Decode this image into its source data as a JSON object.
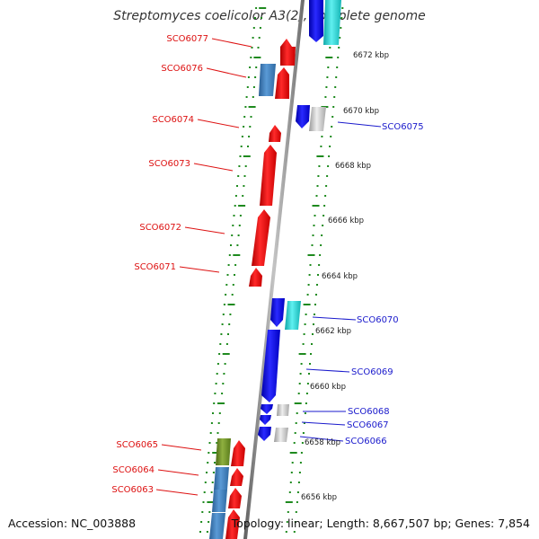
{
  "title": "Streptomyces coelicolor A3(2), complete genome",
  "footer": {
    "accession": "Accession: NC_003888",
    "topology": "Topology: linear; Length: 8,667,507 bp; Genes: 7,854"
  },
  "colors": {
    "left_label": "#dd1111",
    "right_label": "#1a1acc",
    "red_gene": "#ee1111",
    "blue_gene": "#1111ee",
    "steel_gene": "#3a7ab8",
    "cyan_gene": "#22d0d0",
    "gray_gene": "#c8c8c8",
    "olive_gene": "#6f8f2a",
    "tick": "#1e8a1e",
    "backbone": "#8a8a8a"
  },
  "scale_labels": [
    "6672 kbp",
    "6670 kbp",
    "6668 kbp",
    "6666 kbp",
    "6664 kbp",
    "6662 kbp",
    "6660 kbp",
    "6658 kbp",
    "6656 kbp"
  ],
  "left_gene_labels": [
    "SCO6077",
    "SCO6076",
    "SCO6074",
    "SCO6073",
    "SCO6072",
    "SCO6071",
    "SCO6065",
    "SCO6064",
    "SCO6063"
  ],
  "right_gene_labels": [
    "SCO6075",
    "SCO6070",
    "SCO6069",
    "SCO6068",
    "SCO6067",
    "SCO6066"
  ]
}
